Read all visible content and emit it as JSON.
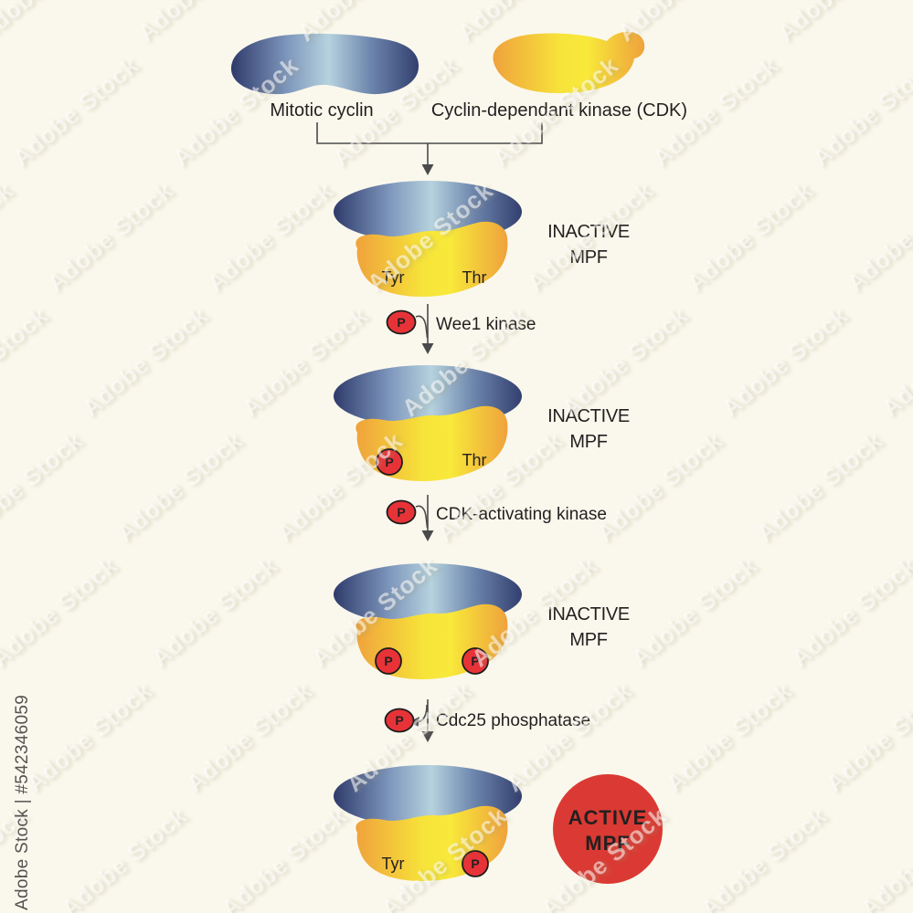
{
  "colors": {
    "background": "#faf8ec",
    "blue_dark": "#2f3b6b",
    "blue_light": "#b6d2de",
    "yellow_edge": "#efa23c",
    "yellow_center": "#f8e93a",
    "phosphate_red": "#e73338",
    "active_badge_red": "#da3a33",
    "line_gray": "#4a4a4c",
    "text_color": "#231f20"
  },
  "watermark": {
    "label": "Adobe Stock",
    "credit": "Adobe Stock | #542346059"
  },
  "inputs": {
    "cyclin_label": "Mitotic cyclin",
    "cdk_label": "Cyclin-dependant kinase (CDK)"
  },
  "phosphate": "P",
  "sites": {
    "tyr": "Tyr",
    "thr": "Thr"
  },
  "states": {
    "inactive_line1": "INACTIVE",
    "inactive_line2": "MPF",
    "active_line1": "ACTIVE",
    "active_line2": "MPF"
  },
  "reactions": {
    "wee1": "Wee1 kinase",
    "cak": "CDK-activating kinase",
    "cdc25": "Cdc25 phosphatase"
  }
}
